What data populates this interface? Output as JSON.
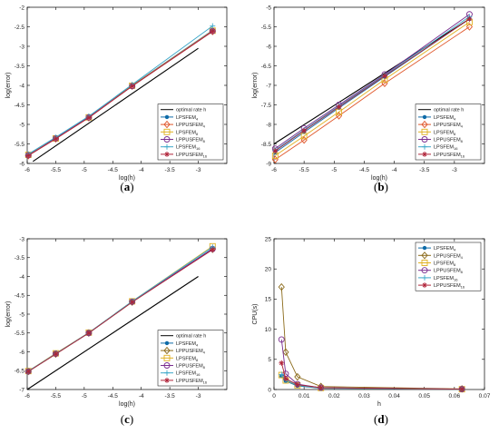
{
  "chart_data": [
    {
      "type": "line",
      "label": "(a)",
      "xlabel": "log(h)",
      "ylabel": "log(error)",
      "xlim": [
        -6,
        -2.5
      ],
      "ylim": [
        -6,
        -2
      ],
      "xticks": [
        -6,
        -5.5,
        -5,
        -4.5,
        -4,
        -3.5,
        -3
      ],
      "xtick_labels": [
        "-6",
        "-5.5",
        "-5",
        "-4.5",
        "-4",
        "-3.5",
        "-3"
      ],
      "yticks": [
        -6,
        -5.5,
        -5,
        -4.5,
        -4,
        -3.5,
        -3,
        -2.5,
        -2
      ],
      "ytick_labels": [
        "-6",
        "-5.5",
        "-5",
        "-4.5",
        "-4",
        "-3.5",
        "-3",
        "-2.5",
        "-2"
      ],
      "legend_position": "lower-right",
      "grid": false,
      "series": [
        {
          "name": "optimal rate h",
          "color": "#000000",
          "marker": "none",
          "x": [
            -5.9,
            -3.0
          ],
          "y": [
            -5.95,
            -3.05
          ]
        },
        {
          "name": "LPSFEM4",
          "sub": "4",
          "base": "LPSFEM",
          "color": "#0e6ba8",
          "marker": "dot",
          "x": [
            -5.98,
            -5.5,
            -4.92,
            -4.16,
            -2.75
          ],
          "y": [
            -5.77,
            -5.35,
            -4.81,
            -4.0,
            -2.59
          ]
        },
        {
          "name": "LPPUSFEM4",
          "sub": "4",
          "base": "LPPUSFEM",
          "color": "#e0562a",
          "marker": "diamond",
          "x": [
            -5.98,
            -5.5,
            -4.92,
            -4.16,
            -2.75
          ],
          "y": [
            -5.8,
            -5.37,
            -4.83,
            -4.02,
            -2.62
          ]
        },
        {
          "name": "LPSFEM8",
          "sub": "8",
          "base": "LPSFEM",
          "color": "#e0b020",
          "marker": "square",
          "x": [
            -5.98,
            -5.5,
            -4.92,
            -4.16,
            -2.75
          ],
          "y": [
            -5.78,
            -5.36,
            -4.82,
            -4.01,
            -2.6
          ]
        },
        {
          "name": "LPPUSFEM8",
          "sub": "8",
          "base": "LPPUSFEM",
          "color": "#7a2d8e",
          "marker": "circle",
          "x": [
            -5.98,
            -5.5,
            -4.92,
            -4.16,
            -2.75
          ],
          "y": [
            -5.79,
            -5.36,
            -4.82,
            -4.02,
            -2.61
          ]
        },
        {
          "name": "LPSFEM16",
          "sub": "16",
          "base": "LPSFEM",
          "color": "#3aa7c9",
          "marker": "plus",
          "x": [
            -5.98,
            -5.5,
            -4.92,
            -4.16,
            -2.75
          ],
          "y": [
            -5.76,
            -5.33,
            -4.79,
            -3.98,
            -2.48
          ]
        },
        {
          "name": "LPPUSFEM16",
          "sub": "16",
          "base": "LPPUSFEM",
          "color": "#b0243a",
          "marker": "star",
          "x": [
            -5.98,
            -5.5,
            -4.92,
            -4.16,
            -2.75
          ],
          "y": [
            -5.8,
            -5.37,
            -4.83,
            -4.02,
            -2.62
          ]
        }
      ]
    },
    {
      "type": "line",
      "label": "(b)",
      "xlabel": "log(h)",
      "ylabel": "log(error)",
      "xlim": [
        -6,
        -2.5
      ],
      "ylim": [
        -9,
        -5
      ],
      "xticks": [
        -6,
        -5.5,
        -5,
        -4.5,
        -4,
        -3.5,
        -3
      ],
      "xtick_labels": [
        "-6",
        "-5.5",
        "-5",
        "-4.5",
        "-4",
        "-3.5",
        "-3"
      ],
      "yticks": [
        -9,
        -8.5,
        -8,
        -7.5,
        -7,
        -6.5,
        -6,
        -5.5,
        -5
      ],
      "ytick_labels": [
        "-9",
        "-8.5",
        "-8",
        "-7.5",
        "-7",
        "-6.5",
        "-6",
        "-5.5",
        "-5"
      ],
      "legend_position": "lower-right",
      "grid": false,
      "series": [
        {
          "name": "optimal rate h",
          "color": "#000000",
          "marker": "none",
          "x": [
            -6.0,
            -2.75
          ],
          "y": [
            -8.5,
            -5.3
          ]
        },
        {
          "name": "LPSFEM4",
          "sub": "4",
          "base": "LPSFEM",
          "color": "#0e6ba8",
          "marker": "dot",
          "x": [
            -5.98,
            -5.5,
            -4.92,
            -4.16,
            -2.75
          ],
          "y": [
            -8.72,
            -8.2,
            -7.58,
            -6.78,
            -5.3
          ]
        },
        {
          "name": "LPPUSFEM4",
          "sub": "4",
          "base": "LPPUSFEM",
          "color": "#e0562a",
          "marker": "diamond",
          "x": [
            -5.98,
            -5.5,
            -4.92,
            -4.16,
            -2.75
          ],
          "y": [
            -8.9,
            -8.4,
            -7.78,
            -6.95,
            -5.5
          ]
        },
        {
          "name": "LPSFEM8",
          "sub": "8",
          "base": "LPSFEM",
          "color": "#e0b020",
          "marker": "square",
          "x": [
            -5.98,
            -5.5,
            -4.92,
            -4.16,
            -2.75
          ],
          "y": [
            -8.8,
            -8.3,
            -7.68,
            -6.85,
            -5.38
          ]
        },
        {
          "name": "LPPUSFEM8",
          "sub": "8",
          "base": "LPPUSFEM",
          "color": "#7a2d8e",
          "marker": "circle",
          "x": [
            -5.98,
            -5.5,
            -4.92,
            -4.16,
            -2.75
          ],
          "y": [
            -8.62,
            -8.1,
            -7.5,
            -6.72,
            -5.18
          ]
        },
        {
          "name": "LPSFEM16",
          "sub": "16",
          "base": "LPSFEM",
          "color": "#3aa7c9",
          "marker": "plus",
          "x": [
            -5.98,
            -5.5,
            -4.92,
            -4.16,
            -2.75
          ],
          "y": [
            -8.66,
            -8.14,
            -7.53,
            -6.74,
            -5.24
          ]
        },
        {
          "name": "LPPUSFEM16",
          "sub": "16",
          "base": "LPPUSFEM",
          "color": "#b0243a",
          "marker": "star",
          "x": [
            -5.98,
            -5.5,
            -4.92,
            -4.16,
            -2.75
          ],
          "y": [
            -8.68,
            -8.16,
            -7.55,
            -6.76,
            -5.3
          ]
        }
      ]
    },
    {
      "type": "line",
      "label": "(c)",
      "xlabel": "log(h)",
      "ylabel": "log(error)",
      "xlim": [
        -6,
        -2.5
      ],
      "ylim": [
        -7,
        -3
      ],
      "xticks": [
        -6,
        -5.5,
        -5,
        -4.5,
        -4,
        -3.5,
        -3
      ],
      "xtick_labels": [
        "-6",
        "-5.5",
        "-5",
        "-4.5",
        "-4",
        "-3.5",
        "-3"
      ],
      "yticks": [
        -7,
        -6.5,
        -6,
        -5.5,
        -5,
        -4.5,
        -4,
        -3.5,
        -3
      ],
      "ytick_labels": [
        "-7",
        "-6.5",
        "-6",
        "-5.5",
        "-5",
        "-4.5",
        "-4",
        "-3.5",
        "-3"
      ],
      "legend_position": "lower-right",
      "grid": false,
      "series": [
        {
          "name": "optimal rate h",
          "color": "#000000",
          "marker": "none",
          "x": [
            -6.0,
            -3.0
          ],
          "y": [
            -7.0,
            -4.0
          ]
        },
        {
          "name": "LPSFEM4",
          "sub": "4",
          "base": "LPSFEM",
          "color": "#0e6ba8",
          "marker": "dot",
          "x": [
            -5.98,
            -5.5,
            -4.92,
            -4.16,
            -2.75
          ],
          "y": [
            -6.52,
            -6.05,
            -5.5,
            -4.67,
            -3.26
          ]
        },
        {
          "name": "LPPUSFEM4",
          "sub": "4",
          "base": "LPPUSFEM",
          "color": "#8b6a1a",
          "marker": "diamond",
          "x": [
            -5.98,
            -5.5,
            -4.92,
            -4.16,
            -2.75
          ],
          "y": [
            -6.52,
            -6.06,
            -5.5,
            -4.68,
            -3.28
          ]
        },
        {
          "name": "LPSFEM8",
          "sub": "8",
          "base": "LPSFEM",
          "color": "#e0b020",
          "marker": "square",
          "x": [
            -5.98,
            -5.5,
            -4.92,
            -4.16,
            -2.75
          ],
          "y": [
            -6.51,
            -6.04,
            -5.49,
            -4.66,
            -3.2
          ]
        },
        {
          "name": "LPPUSFEM8",
          "sub": "8",
          "base": "LPPUSFEM",
          "color": "#7a2d8e",
          "marker": "circle",
          "x": [
            -5.98,
            -5.5,
            -4.92,
            -4.16,
            -2.75
          ],
          "y": [
            -6.52,
            -6.05,
            -5.5,
            -4.67,
            -3.27
          ]
        },
        {
          "name": "LPSFEM16",
          "sub": "16",
          "base": "LPSFEM",
          "color": "#3aa7c9",
          "marker": "plus",
          "x": [
            -5.98,
            -5.5,
            -4.92,
            -4.16,
            -2.75
          ],
          "y": [
            -6.51,
            -6.05,
            -5.49,
            -4.66,
            -3.22
          ]
        },
        {
          "name": "LPPUSFEM16",
          "sub": "16",
          "base": "LPPUSFEM",
          "color": "#b0243a",
          "marker": "star",
          "x": [
            -5.98,
            -5.5,
            -4.92,
            -4.16,
            -2.75
          ],
          "y": [
            -6.52,
            -6.06,
            -5.5,
            -4.68,
            -3.29
          ]
        }
      ]
    },
    {
      "type": "line",
      "label": "(d)",
      "xlabel": "h",
      "ylabel": "CPU(s)",
      "xlim": [
        0,
        0.07
      ],
      "ylim": [
        0,
        25
      ],
      "xticks": [
        0,
        0.01,
        0.02,
        0.03,
        0.04,
        0.05,
        0.06,
        0.07
      ],
      "xtick_labels": [
        "0",
        "0.01",
        "0.02",
        "0.03",
        "0.04",
        "0.05",
        "0.06",
        "0.07"
      ],
      "yticks": [
        0,
        5,
        10,
        15,
        20,
        25
      ],
      "ytick_labels": [
        "0",
        "5",
        "10",
        "15",
        "20",
        "25"
      ],
      "legend_position": "top-right",
      "grid": false,
      "series": [
        {
          "name": "LPSFEM4",
          "sub": "4",
          "base": "LPSFEM",
          "color": "#0e6ba8",
          "marker": "dot",
          "x": [
            0.0025,
            0.0039,
            0.0078,
            0.0156,
            0.0625
          ],
          "y": [
            2.2,
            1.4,
            0.6,
            0.2,
            0.05
          ]
        },
        {
          "name": "LPPUSFEM4",
          "sub": "4",
          "base": "LPPUSFEM",
          "color": "#8b6a1a",
          "marker": "diamond",
          "x": [
            0.0025,
            0.0039,
            0.0078,
            0.0156,
            0.0625
          ],
          "y": [
            17.0,
            6.2,
            2.1,
            0.5,
            0.1
          ]
        },
        {
          "name": "LPSFEM8",
          "sub": "8",
          "base": "LPSFEM",
          "color": "#e0b020",
          "marker": "square",
          "x": [
            0.0025,
            0.0039,
            0.0078,
            0.0156,
            0.0625
          ],
          "y": [
            2.4,
            1.5,
            0.7,
            0.25,
            0.05
          ]
        },
        {
          "name": "LPPUSFEM8",
          "sub": "8",
          "base": "LPPUSFEM",
          "color": "#7a2d8e",
          "marker": "circle",
          "x": [
            0.0025,
            0.0039,
            0.0078,
            0.0156,
            0.0625
          ],
          "y": [
            8.3,
            2.6,
            0.9,
            0.3,
            0.06
          ]
        },
        {
          "name": "LPSFEM16",
          "sub": "16",
          "base": "LPSFEM",
          "color": "#3aa7c9",
          "marker": "plus",
          "x": [
            0.0025,
            0.0039,
            0.0078,
            0.0156,
            0.0625
          ],
          "y": [
            2.5,
            1.6,
            0.7,
            0.25,
            0.05
          ]
        },
        {
          "name": "LPPUSFEM16",
          "sub": "16",
          "base": "LPPUSFEM",
          "color": "#b0243a",
          "marker": "star",
          "x": [
            0.0025,
            0.0039,
            0.0078,
            0.0156,
            0.0625
          ],
          "y": [
            4.4,
            1.8,
            0.8,
            0.3,
            0.06
          ]
        }
      ]
    }
  ]
}
